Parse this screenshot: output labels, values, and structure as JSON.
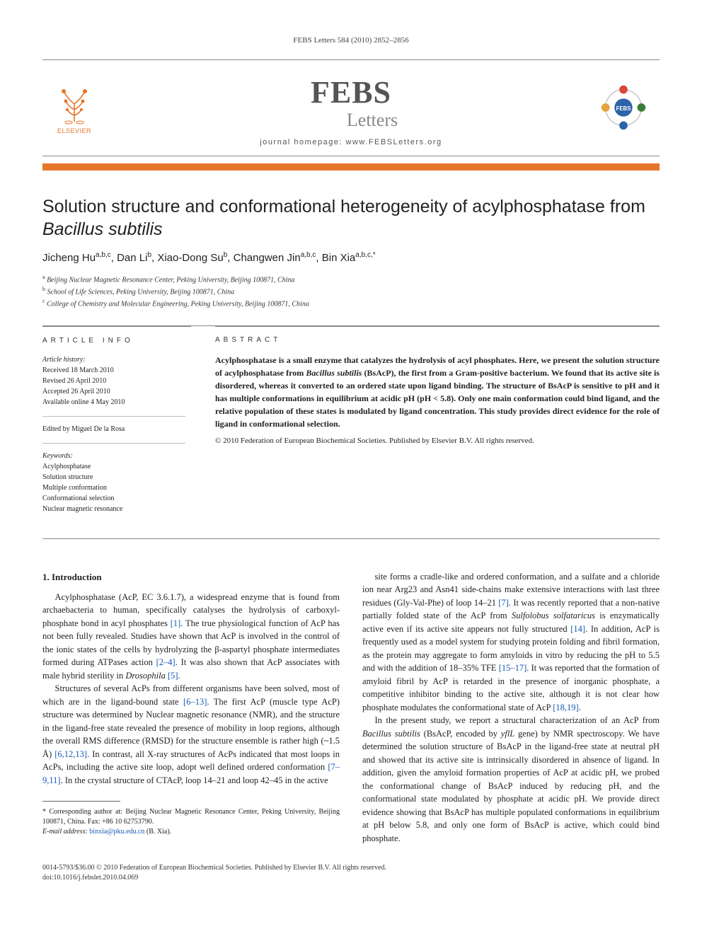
{
  "runningHead": "FEBS Letters 584 (2010) 2852–2856",
  "journal": {
    "name_main": "FEBS",
    "name_sub": "Letters",
    "homepage_label": "journal homepage: www.FEBSLetters.org",
    "elsevier_label": "ELSEVIER"
  },
  "colors": {
    "accent_orange": "#e6762a",
    "link_blue": "#1458b3",
    "rule_gray": "#888888",
    "text": "#222222"
  },
  "title_html": "Solution structure and conformational heterogeneity of acylphosphatase from <em>Bacillus subtilis</em>",
  "authors_html": "Jicheng Hu<sup>a,b,c</sup>, Dan Li<sup>b</sup>, Xiao-Dong Su<sup>b</sup>, Changwen Jin<sup>a,b,c</sup>, Bin Xia<sup>a,b,c,*</sup>",
  "affiliations": [
    {
      "tag": "a",
      "text": "Beijing Nuclear Magnetic Resonance Center, Peking University, Beijing 100871, China"
    },
    {
      "tag": "b",
      "text": "School of Life Sciences, Peking University, Beijing 100871, China"
    },
    {
      "tag": "c",
      "text": "College of Chemistry and Molecular Engineering, Peking University, Beijing 100871, China"
    }
  ],
  "articleInfo": {
    "heading": "ARTICLE INFO",
    "history_label": "Article history:",
    "history_lines": [
      "Received 18 March 2010",
      "Revised 26 April 2010",
      "Accepted 26 April 2010",
      "Available online 4 May 2010"
    ],
    "edited_by": "Edited by Miguel De la Rosa",
    "keywords_label": "Keywords:",
    "keywords": [
      "Acylphosphatase",
      "Solution structure",
      "Multiple conformation",
      "Conformational selection",
      "Nuclear magnetic resonance"
    ]
  },
  "abstract": {
    "heading": "ABSTRACT",
    "text_html": "Acylphosphatase is a small enzyme that catalyzes the hydrolysis of acyl phosphates. Here, we present the solution structure of acylphosphatase from <em>Bacillus subtilis</em> (BsAcP), the first from a Gram-positive bacterium. We found that its active site is disordered, whereas it converted to an ordered state upon ligand binding. The structure of BsAcP is sensitive to pH and it has multiple conformations in equilibrium at acidic pH (pH < 5.8). Only one main conformation could bind ligand, and the relative population of these states is modulated by ligand concentration. This study provides direct evidence for the role of ligand in conformational selection.",
    "copyright": "© 2010 Federation of European Biochemical Societies. Published by Elsevier B.V. All rights reserved."
  },
  "body": {
    "section_heading": "1. Introduction",
    "p1_html": "Acylphosphatase (AcP, EC 3.6.1.7), a widespread enzyme that is found from archaebacteria to human, specifically catalyses the hydrolysis of carboxyl-phosphate bond in acyl phosphates <span class=\"ref\">[1]</span>. The true physiological function of AcP has not been fully revealed. Studies have shown that AcP is involved in the control of the ionic states of the cells by hydrolyzing the β-aspartyl phosphate intermediates formed during ATPases action <span class=\"ref\">[2–4]</span>. It was also shown that AcP associates with male hybrid sterility in <em>Drosophila</em> <span class=\"ref\">[5]</span>.",
    "p2_html": "Structures of several AcPs from different organisms have been solved, most of which are in the ligand-bound state <span class=\"ref\">[6–13]</span>. The first AcP (muscle type AcP) structure was determined by Nuclear magnetic resonance (NMR), and the structure in the ligand-free state revealed the presence of mobility in loop regions, although the overall RMS difference (RMSD) for the structure ensemble is rather high (~1.5 Å) <span class=\"ref\">[6,12,13]</span>. In contrast, all X-ray structures of AcPs indicated that most loops in AcPs, including the active site loop, adopt well defined ordered conformation <span class=\"ref\">[7–9,11]</span>. In the crystal structure of CTAcP, loop 14–21 and loop 42–45 in the active",
    "p3_html": "site forms a cradle-like and ordered conformation, and a sulfate and a chloride ion near Arg23 and Asn41 side-chains make extensive interactions with last three residues (Gly-Val-Phe) of loop 14–21 <span class=\"ref\">[7]</span>. It was recently reported that a non-native partially folded state of the AcP from <em>Sulfolobus solfataricus</em> is enzymatically active even if its active site appears not fully structured <span class=\"ref\">[14]</span>. In addition, AcP is frequently used as a model system for studying protein folding and fibril formation, as the protein may aggregate to form amyloids in vitro by reducing the pH to 5.5 and with the addition of 18–35% TFE <span class=\"ref\">[15–17]</span>. It was reported that the formation of amyloid fibril by AcP is retarded in the presence of inorganic phosphate, a competitive inhibitor binding to the active site, although it is not clear how phosphate modulates the conformational state of AcP <span class=\"ref\">[18,19]</span>.",
    "p4_html": "In the present study, we report a structural characterization of an AcP from <em>Bacillus subtilis</em> (BsAcP, encoded by <em>yflL</em> gene) by NMR spectroscopy. We have determined the solution structure of BsAcP in the ligand-free state at neutral pH and showed that its active site is intrinsically disordered in absence of ligand. In addition, given the amyloid formation properties of AcP at acidic pH, we probed the conformational change of BsAcP induced by reducing pH, and the conformational state modulated by phosphate at acidic pH. We provide direct evidence showing that BsAcP has multiple populated conformations in equilibrium at pH below 5.8, and only one form of BsAcP is active, which could bind phosphate."
  },
  "footnote": {
    "corr_html": "* Corresponding author at: Beijing Nuclear Magnetic Resonance Center, Peking University, Beijing 100871, China. Fax: +86 10 62753790.",
    "email_label": "E-mail address:",
    "email": "binxia@pku.edu.cn",
    "email_who": "(B. Xia)."
  },
  "pageFooter": {
    "line1": "0014-5793/$36.00 © 2010 Federation of European Biochemical Societies. Published by Elsevier B.V. All rights reserved.",
    "line2": "doi:10.1016/j.febslet.2010.04.069"
  }
}
